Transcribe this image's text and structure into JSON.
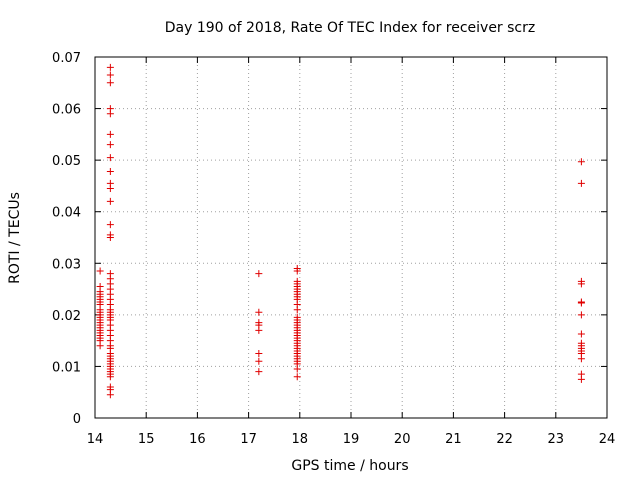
{
  "chart_data": {
    "type": "scatter",
    "title": "Day 190 of 2018, Rate Of TEC Index for receiver scrz",
    "xlabel": "GPS time / hours",
    "ylabel": "ROTI / TECUs",
    "xlim": [
      14,
      24
    ],
    "ylim": [
      0,
      0.07
    ],
    "xticks": [
      14,
      15,
      16,
      17,
      18,
      19,
      20,
      21,
      22,
      23,
      24
    ],
    "xtick_labels": [
      "14",
      "15",
      "16",
      "17",
      "18",
      "19",
      "20",
      "21",
      "22",
      "23",
      "24"
    ],
    "yticks": [
      0,
      0.01,
      0.02,
      0.03,
      0.04,
      0.05,
      0.06,
      0.07
    ],
    "ytick_labels": [
      "0",
      "0.01",
      "0.02",
      "0.03",
      "0.04",
      "0.05",
      "0.06",
      "0.07"
    ],
    "grid": true,
    "marker": "+",
    "color": "#e00000",
    "series": [
      {
        "name": "",
        "points": [
          [
            14.1,
            0.0285
          ],
          [
            14.1,
            0.0255
          ],
          [
            14.1,
            0.0245
          ],
          [
            14.1,
            0.024
          ],
          [
            14.1,
            0.0235
          ],
          [
            14.1,
            0.023
          ],
          [
            14.1,
            0.0225
          ],
          [
            14.1,
            0.022
          ],
          [
            14.1,
            0.021
          ],
          [
            14.1,
            0.0205
          ],
          [
            14.1,
            0.02
          ],
          [
            14.1,
            0.0195
          ],
          [
            14.1,
            0.019
          ],
          [
            14.1,
            0.0185
          ],
          [
            14.1,
            0.018
          ],
          [
            14.1,
            0.0175
          ],
          [
            14.1,
            0.017
          ],
          [
            14.1,
            0.0165
          ],
          [
            14.1,
            0.016
          ],
          [
            14.1,
            0.0155
          ],
          [
            14.1,
            0.015
          ],
          [
            14.1,
            0.014
          ],
          [
            14.3,
            0.068
          ],
          [
            14.3,
            0.0665
          ],
          [
            14.3,
            0.065
          ],
          [
            14.3,
            0.06
          ],
          [
            14.3,
            0.059
          ],
          [
            14.3,
            0.055
          ],
          [
            14.3,
            0.053
          ],
          [
            14.3,
            0.0505
          ],
          [
            14.3,
            0.0478
          ],
          [
            14.3,
            0.0455
          ],
          [
            14.3,
            0.0445
          ],
          [
            14.3,
            0.042
          ],
          [
            14.3,
            0.0375
          ],
          [
            14.3,
            0.0355
          ],
          [
            14.3,
            0.035
          ],
          [
            14.3,
            0.028
          ],
          [
            14.3,
            0.027
          ],
          [
            14.3,
            0.026
          ],
          [
            14.3,
            0.025
          ],
          [
            14.3,
            0.024
          ],
          [
            14.3,
            0.023
          ],
          [
            14.3,
            0.022
          ],
          [
            14.3,
            0.021
          ],
          [
            14.3,
            0.0205
          ],
          [
            14.3,
            0.02
          ],
          [
            14.3,
            0.0195
          ],
          [
            14.3,
            0.019
          ],
          [
            14.3,
            0.018
          ],
          [
            14.3,
            0.017
          ],
          [
            14.3,
            0.016
          ],
          [
            14.3,
            0.015
          ],
          [
            14.3,
            0.014
          ],
          [
            14.3,
            0.0135
          ],
          [
            14.3,
            0.0125
          ],
          [
            14.3,
            0.012
          ],
          [
            14.3,
            0.0115
          ],
          [
            14.3,
            0.011
          ],
          [
            14.3,
            0.0105
          ],
          [
            14.3,
            0.01
          ],
          [
            14.3,
            0.0095
          ],
          [
            14.3,
            0.009
          ],
          [
            14.3,
            0.0085
          ],
          [
            14.3,
            0.008
          ],
          [
            14.3,
            0.006
          ],
          [
            14.3,
            0.0055
          ],
          [
            14.3,
            0.0045
          ],
          [
            17.2,
            0.028
          ],
          [
            17.2,
            0.0205
          ],
          [
            17.2,
            0.0185
          ],
          [
            17.2,
            0.018
          ],
          [
            17.2,
            0.017
          ],
          [
            17.2,
            0.0125
          ],
          [
            17.2,
            0.011
          ],
          [
            17.2,
            0.009
          ],
          [
            17.95,
            0.029
          ],
          [
            17.95,
            0.0285
          ],
          [
            17.95,
            0.0265
          ],
          [
            17.95,
            0.026
          ],
          [
            17.95,
            0.0255
          ],
          [
            17.95,
            0.025
          ],
          [
            17.95,
            0.0245
          ],
          [
            17.95,
            0.024
          ],
          [
            17.95,
            0.0235
          ],
          [
            17.95,
            0.023
          ],
          [
            17.95,
            0.022
          ],
          [
            17.95,
            0.021
          ],
          [
            17.95,
            0.0195
          ],
          [
            17.95,
            0.019
          ],
          [
            17.95,
            0.0185
          ],
          [
            17.95,
            0.018
          ],
          [
            17.95,
            0.0175
          ],
          [
            17.95,
            0.017
          ],
          [
            17.95,
            0.0165
          ],
          [
            17.95,
            0.016
          ],
          [
            17.95,
            0.0155
          ],
          [
            17.95,
            0.015
          ],
          [
            17.95,
            0.0145
          ],
          [
            17.95,
            0.014
          ],
          [
            17.95,
            0.0135
          ],
          [
            17.95,
            0.013
          ],
          [
            17.95,
            0.0125
          ],
          [
            17.95,
            0.012
          ],
          [
            17.95,
            0.0115
          ],
          [
            17.95,
            0.011
          ],
          [
            17.95,
            0.0105
          ],
          [
            17.95,
            0.0095
          ],
          [
            17.95,
            0.008
          ],
          [
            23.5,
            0.0497
          ],
          [
            23.5,
            0.0455
          ],
          [
            23.5,
            0.0265
          ],
          [
            23.5,
            0.026
          ],
          [
            23.5,
            0.0225
          ],
          [
            23.5,
            0.0223
          ],
          [
            23.5,
            0.02
          ],
          [
            23.5,
            0.0163
          ],
          [
            23.5,
            0.0145
          ],
          [
            23.5,
            0.014
          ],
          [
            23.5,
            0.0135
          ],
          [
            23.5,
            0.013
          ],
          [
            23.5,
            0.0125
          ],
          [
            23.5,
            0.0115
          ],
          [
            23.5,
            0.0085
          ],
          [
            23.5,
            0.0075
          ]
        ]
      }
    ]
  }
}
